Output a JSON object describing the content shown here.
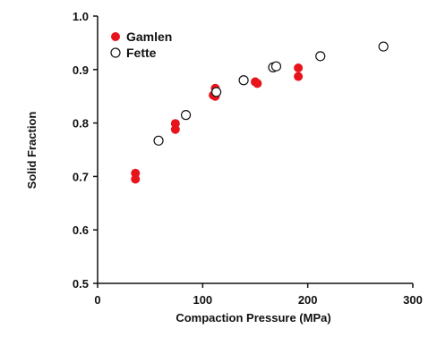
{
  "chart_data": {
    "type": "scatter",
    "title": "",
    "xlabel": "Compaction Pressure (MPa)",
    "ylabel": "Solid Fraction",
    "xlim": [
      0,
      300
    ],
    "ylim": [
      0.5,
      1.0
    ],
    "x_ticks": [
      0,
      100,
      200,
      300
    ],
    "y_ticks": [
      0.5,
      0.6,
      0.7,
      0.8,
      0.9,
      1.0
    ],
    "x_tick_labels": [
      "0",
      "100",
      "200",
      "300"
    ],
    "y_tick_labels": [
      "0.5",
      "0.6",
      "0.7",
      "0.8",
      "0.9",
      "1.0"
    ],
    "grid": false,
    "legend_position": "top-left",
    "series": [
      {
        "name": "Gamlen",
        "marker": "filled-circle",
        "color": "#e8141c",
        "points": [
          {
            "x": 36,
            "y": 0.706
          },
          {
            "x": 36,
            "y": 0.695
          },
          {
            "x": 74,
            "y": 0.799
          },
          {
            "x": 74,
            "y": 0.788
          },
          {
            "x": 110,
            "y": 0.852
          },
          {
            "x": 112,
            "y": 0.865
          },
          {
            "x": 112,
            "y": 0.85
          },
          {
            "x": 150,
            "y": 0.877
          },
          {
            "x": 152,
            "y": 0.874
          },
          {
            "x": 191,
            "y": 0.903
          },
          {
            "x": 191,
            "y": 0.887
          }
        ]
      },
      {
        "name": "Fette",
        "marker": "open-circle",
        "color": "#111111",
        "points": [
          {
            "x": 58,
            "y": 0.767
          },
          {
            "x": 84,
            "y": 0.815
          },
          {
            "x": 113,
            "y": 0.858
          },
          {
            "x": 139,
            "y": 0.88
          },
          {
            "x": 167,
            "y": 0.904
          },
          {
            "x": 170,
            "y": 0.906
          },
          {
            "x": 212,
            "y": 0.925
          },
          {
            "x": 272,
            "y": 0.943
          }
        ]
      }
    ]
  }
}
